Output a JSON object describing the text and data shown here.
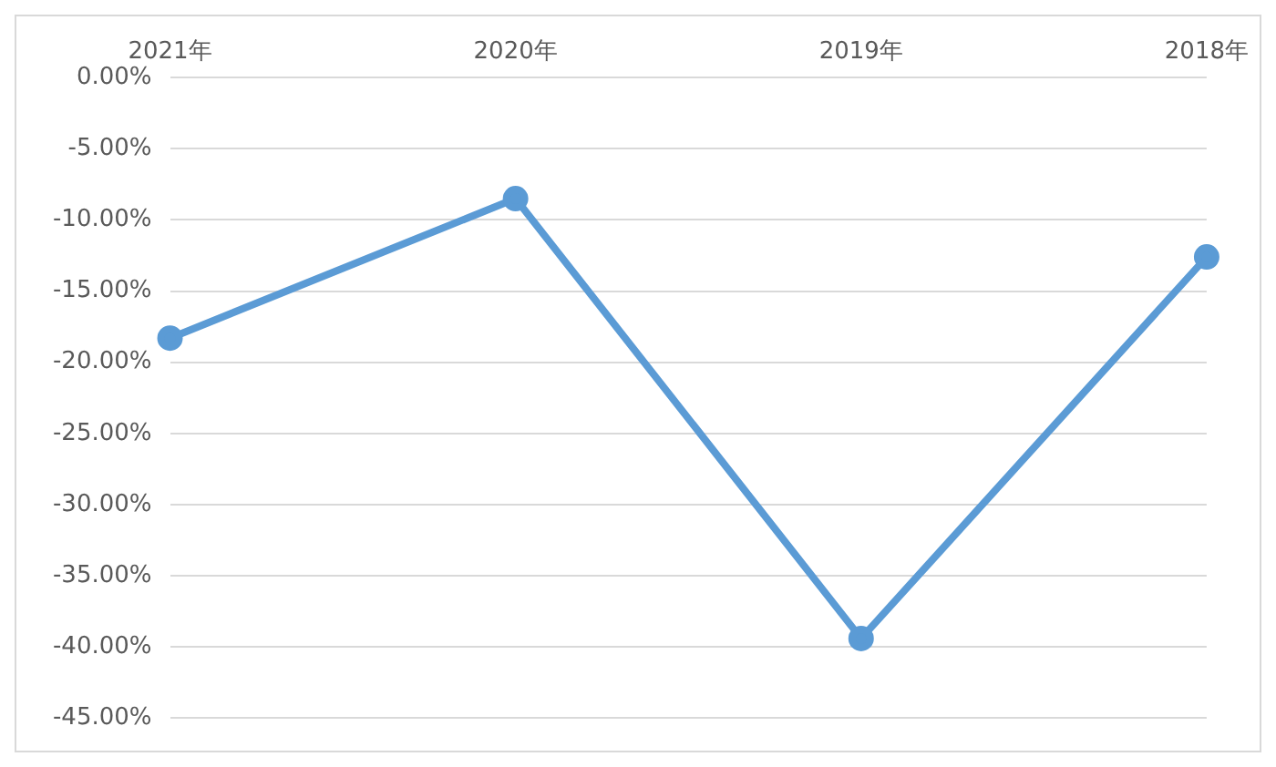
{
  "chart_data": {
    "type": "line",
    "categories": [
      "2021年",
      "2020年",
      "2019年",
      "2018年"
    ],
    "series": [
      {
        "color": "#5b9bd5",
        "values": [
          -18.3,
          -8.5,
          -39.4,
          -12.6
        ]
      }
    ],
    "ylim": [
      -45,
      0
    ],
    "yticks": [
      {
        "value": 0,
        "label": "0.00%"
      },
      {
        "value": -5,
        "label": "-5.00%"
      },
      {
        "value": -10,
        "label": "-10.00%"
      },
      {
        "value": -15,
        "label": "-15.00%"
      },
      {
        "value": -20,
        "label": "-20.00%"
      },
      {
        "value": -25,
        "label": "-25.00%"
      },
      {
        "value": -30,
        "label": "-30.00%"
      },
      {
        "value": -35,
        "label": "-35.00%"
      },
      {
        "value": -40,
        "label": "-40.00%"
      },
      {
        "value": -45,
        "label": "-45.00%"
      }
    ],
    "grid": "y",
    "marker": "circle",
    "line_style": "solid",
    "legend": false
  }
}
